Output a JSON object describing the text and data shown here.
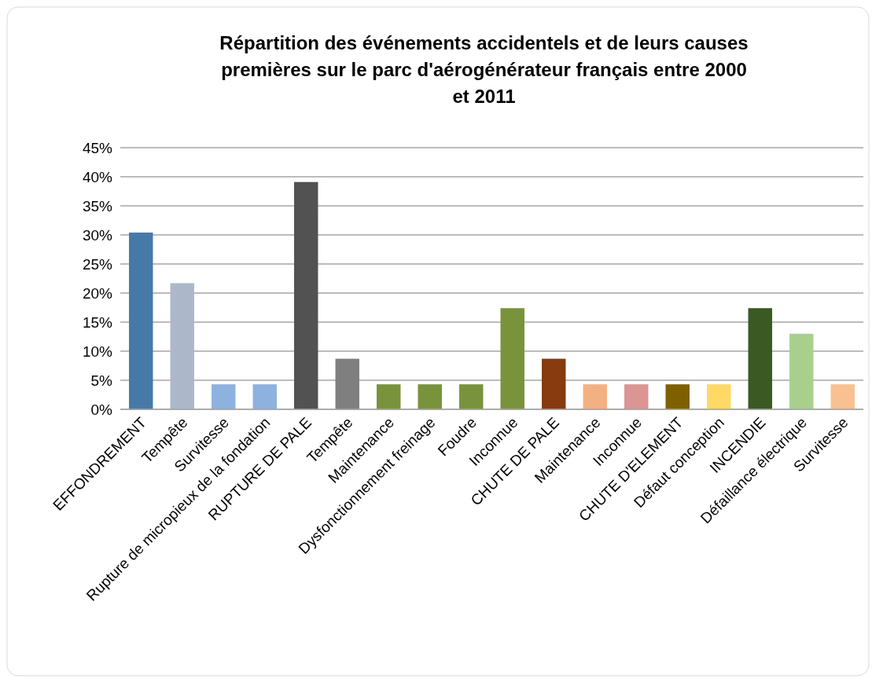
{
  "chart_data": {
    "type": "bar",
    "title": "Répartition des événements accidentels et de leurs causes premières sur le parc d'aérogénérateur français entre 2000 et 2011",
    "categories": [
      "EFFONDREMENT",
      "Tempête",
      "Survitesse",
      "Rupture de micropieux de la fondation",
      "RUPTURE DE PALE",
      "Tempête",
      "Maintenance",
      "Dysfonctionnement freinage",
      "Foudre",
      "Inconnue",
      "CHUTE DE PALE",
      "Maintenance",
      "Inconnue",
      "CHUTE D'ELEMENT",
      "Défaut conception",
      "INCENDIE",
      "Défaillance électrique",
      "Survitesse"
    ],
    "values": [
      30.4,
      21.7,
      4.3,
      4.3,
      39.1,
      8.7,
      4.3,
      4.3,
      4.3,
      17.4,
      8.7,
      4.3,
      4.3,
      4.3,
      4.3,
      17.4,
      13.0,
      4.3
    ],
    "colors": [
      "#4779a8",
      "#acb8ca",
      "#8eb2e0",
      "#8eb2e0",
      "#525252",
      "#7f7f7f",
      "#79933c",
      "#79933c",
      "#79933c",
      "#79933c",
      "#873b0e",
      "#f3b083",
      "#da9594",
      "#7f6000",
      "#fed966",
      "#3b5923",
      "#a8d08c",
      "#f9c091"
    ],
    "ylim": [
      0,
      45
    ],
    "yticks": [
      {
        "value": 0,
        "label": "0%"
      },
      {
        "value": 5,
        "label": "5%"
      },
      {
        "value": 10,
        "label": "10%"
      },
      {
        "value": 15,
        "label": "15%"
      },
      {
        "value": 20,
        "label": "20%"
      },
      {
        "value": 25,
        "label": "25%"
      },
      {
        "value": 30,
        "label": "30%"
      },
      {
        "value": 35,
        "label": "35%"
      },
      {
        "value": 40,
        "label": "40%"
      },
      {
        "value": 45,
        "label": "45%"
      }
    ],
    "grid": "y"
  }
}
